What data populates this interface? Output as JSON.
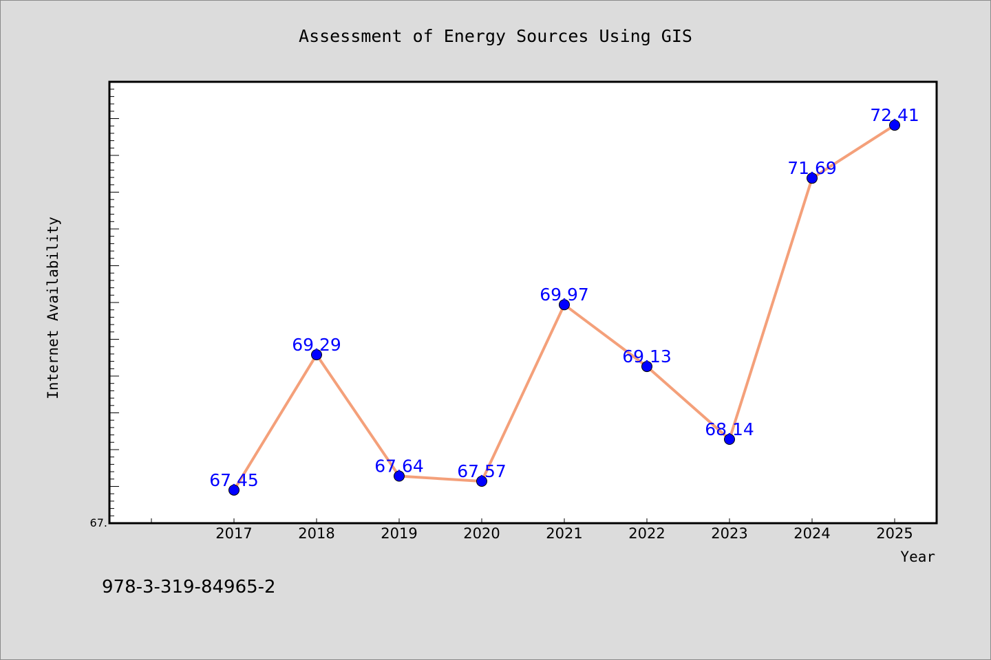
{
  "chart_data": {
    "type": "line",
    "title": "Assessment of Energy Sources Using GIS",
    "xlabel": "Year",
    "ylabel": "Internet Availability",
    "categories": [
      "2017",
      "2018",
      "2019",
      "2020",
      "2021",
      "2022",
      "2023",
      "2024",
      "2025"
    ],
    "series": [
      {
        "values": [
          67.45,
          69.29,
          67.64,
          67.57,
          69.97,
          69.13,
          68.14,
          71.69,
          72.41
        ],
        "labels": [
          "67.45",
          "69.29",
          "67.64",
          "67.57",
          "69.97",
          "69.13",
          "68.14",
          "71.69",
          "72.41"
        ],
        "line_color": "#f4a07a",
        "marker_color": "#0000ff"
      }
    ],
    "ylim": [
      67.0,
      73.0
    ],
    "y_tick_label_shown": "67.",
    "grid": false,
    "legend": "none"
  },
  "footer_text": "978-3-319-84965-2"
}
